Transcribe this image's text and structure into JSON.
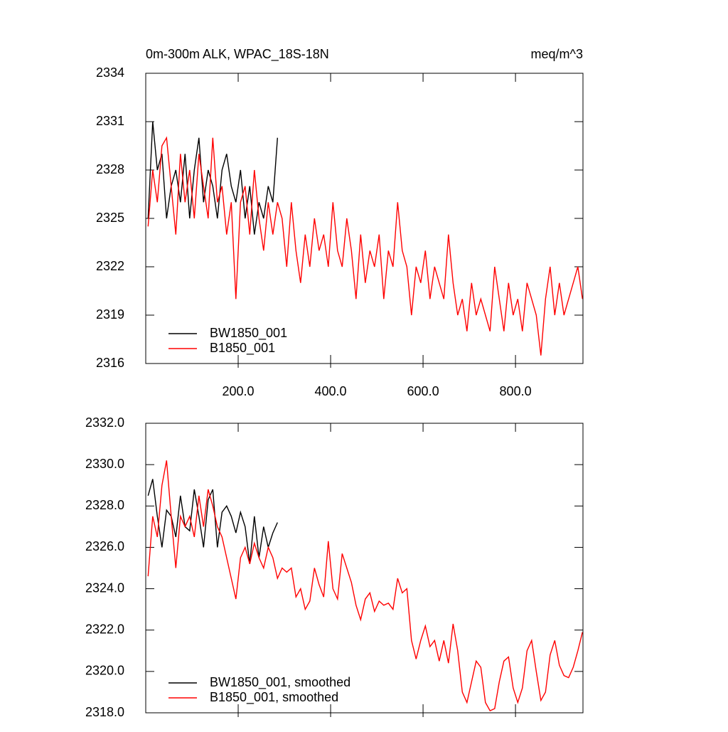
{
  "chart_data": [
    {
      "type": "line",
      "title": "0m-300m ALK, WPAC_18S-18N",
      "subtitle": "meq/m^3",
      "xlim": [
        0,
        946
      ],
      "ylim": [
        2316,
        2334
      ],
      "xticks": [
        {
          "value": 200,
          "label": "200.0"
        },
        {
          "value": 400,
          "label": "400.0"
        },
        {
          "value": 600,
          "label": "600.0"
        },
        {
          "value": 800,
          "label": "800.0"
        }
      ],
      "yticks": [
        2316,
        2319,
        2322,
        2325,
        2328,
        2331,
        2334
      ],
      "show_xtick_labels": true,
      "legend": "lower left",
      "series": [
        {
          "name": "BW1850_001",
          "color": "#000000",
          "x": [
            5,
            15,
            25,
            35,
            45,
            55,
            65,
            75,
            85,
            95,
            105,
            115,
            125,
            135,
            145,
            155,
            165,
            175,
            185,
            195,
            205,
            215,
            225,
            235,
            245,
            255,
            265,
            275,
            285
          ],
          "values": [
            2325,
            2331,
            2328,
            2329,
            2325,
            2327,
            2328,
            2326,
            2329,
            2325,
            2328,
            2330,
            2326,
            2328,
            2327,
            2325,
            2328,
            2329,
            2327,
            2326,
            2328,
            2325,
            2327,
            2324,
            2326,
            2325,
            2327,
            2326,
            2330
          ]
        },
        {
          "name": "B1850_001",
          "color": "#ff0000",
          "x": [
            5,
            15,
            25,
            35,
            45,
            55,
            65,
            75,
            85,
            95,
            105,
            115,
            125,
            135,
            145,
            155,
            165,
            175,
            185,
            195,
            205,
            215,
            225,
            235,
            245,
            255,
            265,
            275,
            285,
            295,
            305,
            315,
            325,
            335,
            345,
            355,
            365,
            375,
            385,
            395,
            405,
            415,
            425,
            435,
            445,
            455,
            465,
            475,
            485,
            495,
            505,
            515,
            525,
            535,
            545,
            555,
            565,
            575,
            585,
            595,
            605,
            615,
            625,
            635,
            645,
            655,
            665,
            675,
            685,
            695,
            705,
            715,
            725,
            735,
            745,
            755,
            765,
            775,
            785,
            795,
            805,
            815,
            825,
            835,
            845,
            855,
            865,
            875,
            885,
            895,
            905,
            915,
            925,
            935,
            945
          ],
          "values": [
            2324.5,
            2328,
            2326,
            2329.5,
            2330,
            2327,
            2324,
            2329,
            2326,
            2328,
            2325,
            2329,
            2327,
            2325,
            2330,
            2326,
            2327,
            2324,
            2326,
            2320,
            2326,
            2327,
            2324,
            2328,
            2325,
            2323,
            2326,
            2324,
            2326,
            2325,
            2322,
            2326,
            2323,
            2321,
            2324,
            2322,
            2325,
            2323,
            2324,
            2322,
            2326,
            2323,
            2322,
            2325,
            2323,
            2320,
            2324,
            2321,
            2323,
            2322,
            2324,
            2320,
            2323,
            2322,
            2326,
            2323,
            2322,
            2319,
            2322,
            2321,
            2323,
            2320,
            2322,
            2321,
            2320,
            2324,
            2321,
            2319,
            2320,
            2318,
            2321,
            2319,
            2320,
            2319,
            2318,
            2322,
            2320,
            2318,
            2321,
            2319,
            2320,
            2318,
            2321,
            2320,
            2319,
            2316.5,
            2320,
            2322,
            2319,
            2321,
            2319,
            2320,
            2321,
            2322,
            2320
          ]
        }
      ]
    },
    {
      "type": "line",
      "xlim": [
        0,
        946
      ],
      "ylim": [
        2318,
        2332
      ],
      "xticks": [
        200,
        400,
        600,
        800
      ],
      "yticks": [
        {
          "value": 2318,
          "label": "2318.0"
        },
        {
          "value": 2320,
          "label": "2320.0"
        },
        {
          "value": 2322,
          "label": "2322.0"
        },
        {
          "value": 2324,
          "label": "2324.0"
        },
        {
          "value": 2326,
          "label": "2326.0"
        },
        {
          "value": 2328,
          "label": "2328.0"
        },
        {
          "value": 2330,
          "label": "2330.0"
        },
        {
          "value": 2332,
          "label": "2332.0"
        }
      ],
      "show_xtick_labels": false,
      "legend": "lower left",
      "series": [
        {
          "name": "BW1850_001, smoothed",
          "color": "#000000",
          "x": [
            5,
            15,
            25,
            35,
            45,
            55,
            65,
            75,
            85,
            95,
            105,
            115,
            125,
            135,
            145,
            155,
            165,
            175,
            185,
            195,
            205,
            215,
            225,
            235,
            245,
            255,
            265,
            275,
            285
          ],
          "values": [
            2328.5,
            2329.3,
            2327.5,
            2326,
            2327.8,
            2327.5,
            2326.5,
            2328.5,
            2327,
            2326.8,
            2328.8,
            2327.5,
            2326,
            2328.3,
            2328.8,
            2326,
            2327.7,
            2328,
            2327.5,
            2326.7,
            2327.7,
            2327,
            2325.2,
            2327.5,
            2325.5,
            2327,
            2326,
            2326.7,
            2327.2
          ]
        },
        {
          "name": "B1850_001, smoothed",
          "color": "#ff0000",
          "x": [
            5,
            15,
            25,
            35,
            45,
            55,
            65,
            75,
            85,
            95,
            105,
            115,
            125,
            135,
            145,
            155,
            165,
            175,
            185,
            195,
            205,
            215,
            225,
            235,
            245,
            255,
            265,
            275,
            285,
            295,
            305,
            315,
            325,
            335,
            345,
            355,
            365,
            375,
            385,
            395,
            405,
            415,
            425,
            435,
            445,
            455,
            465,
            475,
            485,
            495,
            505,
            515,
            525,
            535,
            545,
            555,
            565,
            575,
            585,
            595,
            605,
            615,
            625,
            635,
            645,
            655,
            665,
            675,
            685,
            695,
            705,
            715,
            725,
            735,
            745,
            755,
            765,
            775,
            785,
            795,
            805,
            815,
            825,
            835,
            845,
            855,
            865,
            875,
            885,
            895,
            905,
            915,
            925,
            935,
            945
          ],
          "values": [
            2324.6,
            2327.5,
            2326.5,
            2329,
            2330.2,
            2327.5,
            2325,
            2327.5,
            2327,
            2327.5,
            2326.5,
            2328.5,
            2327,
            2328.8,
            2328,
            2327,
            2326.5,
            2325.5,
            2324.5,
            2323.5,
            2325.5,
            2326,
            2325.2,
            2326.2,
            2325.5,
            2325,
            2326,
            2325.5,
            2324.5,
            2325,
            2324.8,
            2325,
            2323.6,
            2324,
            2323,
            2323.4,
            2325,
            2324.2,
            2323.6,
            2326.3,
            2324,
            2323.5,
            2325.7,
            2325,
            2324.3,
            2323.2,
            2322.5,
            2323.5,
            2323.8,
            2322.9,
            2323.4,
            2323.2,
            2323.3,
            2323,
            2324.5,
            2323.8,
            2324,
            2321.5,
            2320.6,
            2321.5,
            2322.2,
            2321.2,
            2321.5,
            2320.5,
            2321.5,
            2320.4,
            2322.3,
            2321,
            2319,
            2318.5,
            2319.5,
            2320.5,
            2320.2,
            2318.5,
            2318.1,
            2318.2,
            2319.5,
            2320.5,
            2320.7,
            2319.2,
            2318.5,
            2319.2,
            2321,
            2321.5,
            2320,
            2318.6,
            2319,
            2320.8,
            2321.5,
            2320.3,
            2319.8,
            2319.7,
            2320.2,
            2321,
            2321.9
          ]
        }
      ]
    }
  ]
}
